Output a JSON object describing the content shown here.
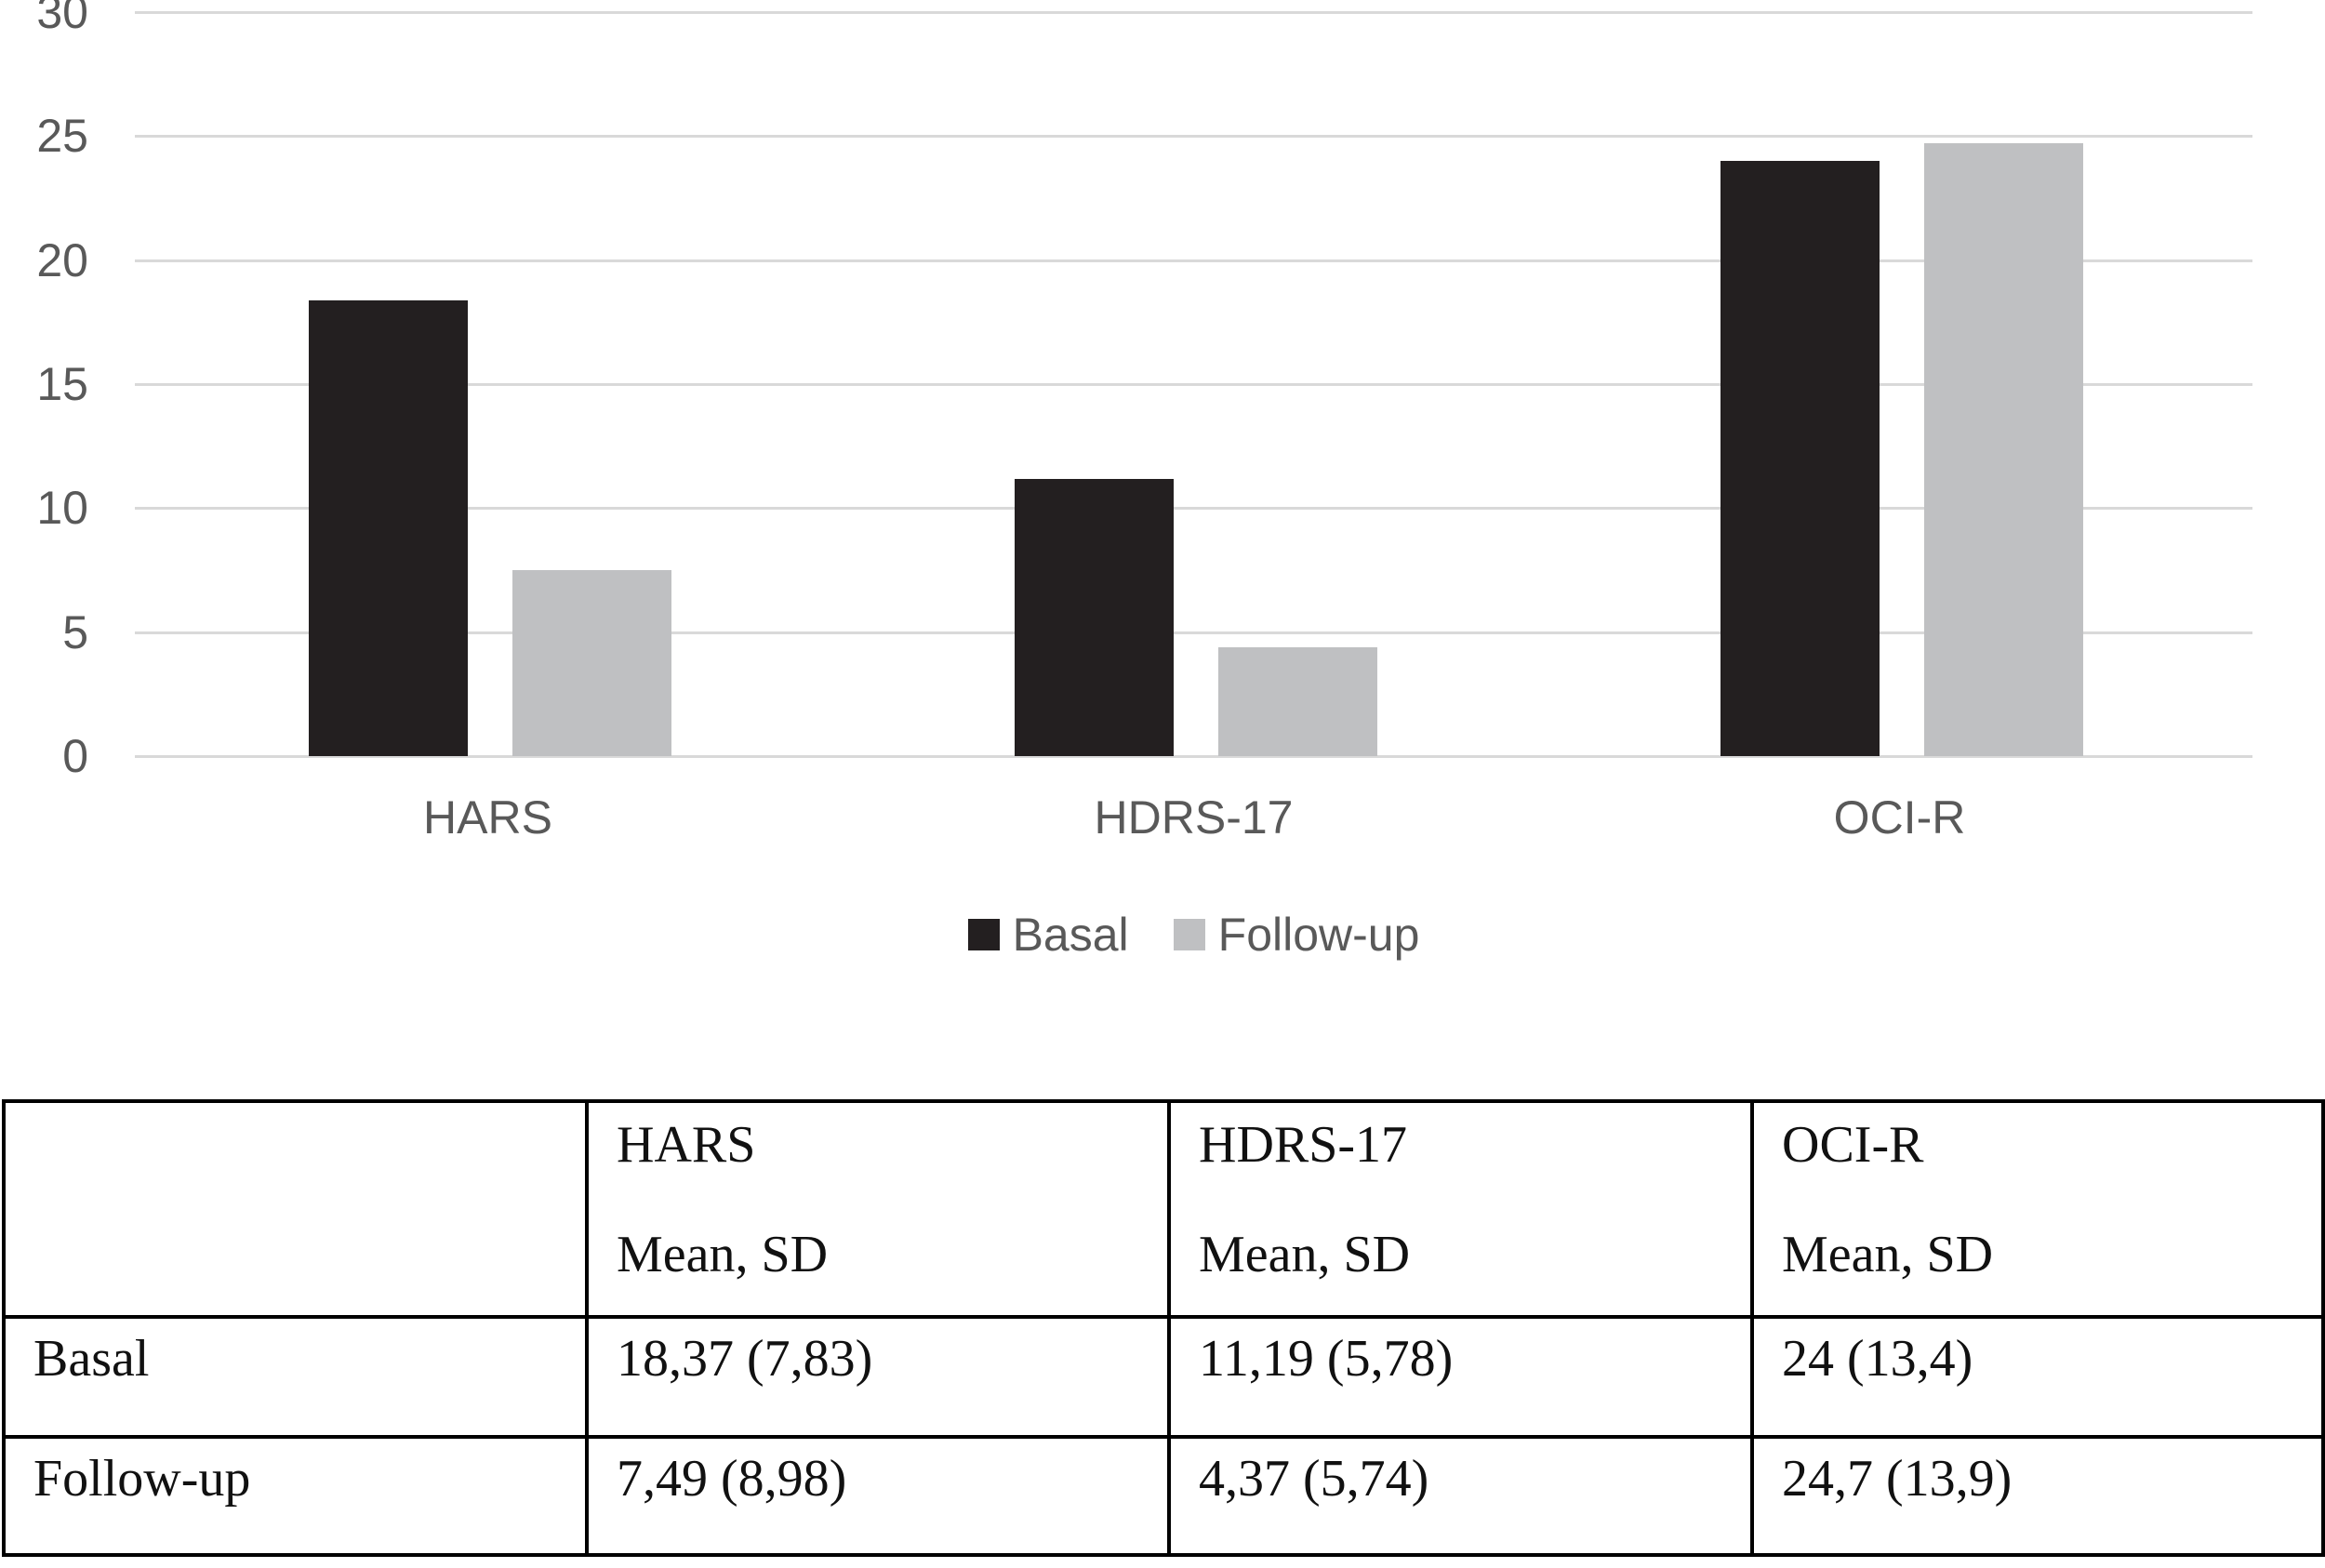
{
  "chart_data": {
    "type": "bar",
    "categories": [
      "HARS",
      "HDRS-17",
      "OCI-R"
    ],
    "series": [
      {
        "name": "Basal",
        "color": "#231f20",
        "values": [
          18.37,
          11.19,
          24.0
        ]
      },
      {
        "name": "Follow-up",
        "color": "#bfc0c2",
        "values": [
          7.49,
          4.37,
          24.7
        ]
      }
    ],
    "title": "",
    "xlabel": "",
    "ylabel": "",
    "ylim": [
      0,
      30
    ],
    "yticks": [
      0,
      5,
      10,
      15,
      20,
      25,
      30
    ],
    "grid": true,
    "legend_position": "bottom"
  },
  "colors": {
    "basal_bar": "#231f20",
    "followup_bar": "#bfc0c2",
    "gridline": "#d9d9d9",
    "axis_text": "#595959",
    "table_border": "#000000",
    "table_text": "#111111"
  },
  "legend": {
    "items": [
      {
        "label": "Basal",
        "color": "#231f20"
      },
      {
        "label": "Follow-up",
        "color": "#bfc0c2"
      }
    ]
  },
  "table": {
    "columns": [
      {
        "title": "",
        "subtitle": ""
      },
      {
        "title": "HARS",
        "subtitle": "Mean, SD"
      },
      {
        "title": "HDRS-17",
        "subtitle": "Mean, SD"
      },
      {
        "title": "OCI-R",
        "subtitle": "Mean, SD"
      }
    ],
    "rows": [
      {
        "label": "Basal",
        "values": [
          "18,37 (7,83)",
          "11,19 (5,78)",
          "24 (13,4)"
        ]
      },
      {
        "label": "Follow-up",
        "values": [
          "7,49 (8,98)",
          "4,37 (5,74)",
          "24,7 (13,9)"
        ]
      }
    ]
  }
}
